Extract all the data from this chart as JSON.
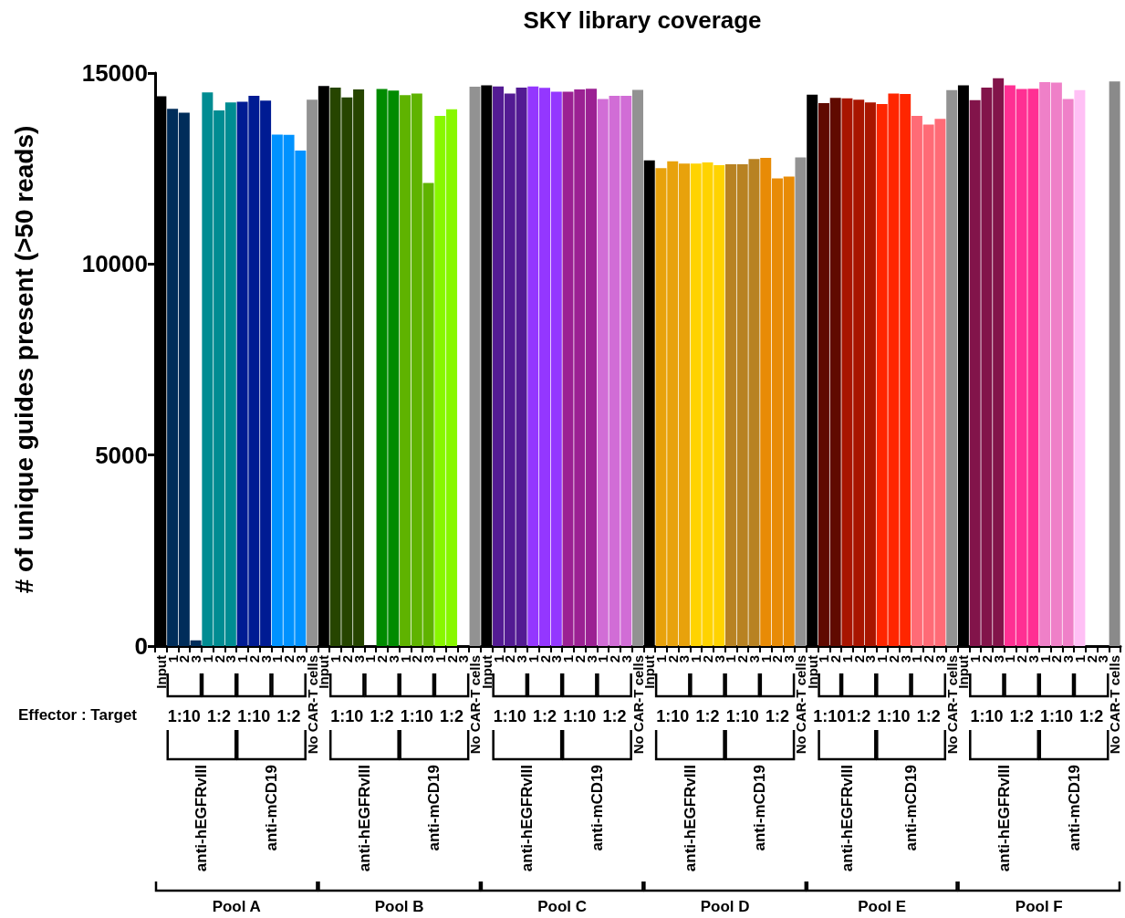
{
  "chart_data": {
    "type": "bar",
    "title": "SKY library coverage",
    "ylabel": "# of unique guides present (>50 reads)",
    "categories": [
      "Input",
      "1",
      "2",
      "3",
      "1",
      "2",
      "3",
      "1",
      "2",
      "3",
      "1",
      "2",
      "3",
      "No CAR-T cells",
      "Input",
      "1",
      "2",
      "3",
      "1",
      "2",
      "3",
      "1",
      "2",
      "3",
      "1",
      "2",
      "3",
      "No CAR-T cells",
      "Input",
      "1",
      "2",
      "3",
      "1",
      "2",
      "3",
      "1",
      "2",
      "3",
      "1",
      "2",
      "3",
      "No CAR-T cells",
      "Input",
      "1",
      "2",
      "3",
      "1",
      "2",
      "3",
      "1",
      "2",
      "3",
      "1",
      "2",
      "3",
      "No CAR-T cells",
      "Input",
      "1",
      "2",
      "1",
      "2",
      "3",
      "1",
      "2",
      "3",
      "1",
      "2",
      "3",
      "No CAR-T cells",
      "Input",
      "1",
      "2",
      "3",
      "1",
      "2",
      "3",
      "1",
      "2",
      "3",
      "1",
      "2",
      "3",
      "No CAR-T cells"
    ],
    "values": [
      14390,
      14060,
      13960,
      150,
      14490,
      14020,
      14230,
      14250,
      14400,
      14280,
      13390,
      13380,
      12970,
      14300,
      14660,
      14620,
      14360,
      14570,
      null,
      14580,
      14540,
      14420,
      14460,
      12120,
      13880,
      14050,
      null,
      14640,
      14680,
      14650,
      14460,
      14620,
      14650,
      14610,
      14510,
      14510,
      14570,
      14590,
      14320,
      14400,
      14400,
      14560,
      12710,
      12510,
      12690,
      12630,
      12630,
      12660,
      12590,
      12610,
      12610,
      12750,
      12780,
      12240,
      12290,
      12790,
      14430,
      14210,
      14350,
      14340,
      14300,
      14230,
      14190,
      14460,
      14450,
      13880,
      13650,
      13800,
      14550,
      14680,
      14290,
      14620,
      14860,
      14680,
      14580,
      14590,
      14760,
      14750,
      14320,
      14550,
      null,
      null,
      14780
    ],
    "colors": [
      "#000000",
      "#002d5a",
      "#002d5a",
      "#002d5a",
      "#008c92",
      "#008c92",
      "#008c92",
      "#001b93",
      "#001b93",
      "#001b93",
      "#0092ff",
      "#0092ff",
      "#0092ff",
      "#929292",
      "#000000",
      "#264500",
      "#264500",
      "#264500",
      null,
      "#008b00",
      "#008b00",
      "#5fb300",
      "#5fb300",
      "#5fb300",
      "#88f700",
      "#88f700",
      null,
      "#929292",
      "#000000",
      "#531b93",
      "#531b93",
      "#531b93",
      "#9437ff",
      "#9437ff",
      "#9437ff",
      "#9b2193",
      "#9b2193",
      "#9b2193",
      "#d16dd6",
      "#d16dd6",
      "#d16dd6",
      "#929292",
      "#000000",
      "#e8a20c",
      "#e8a20c",
      "#e8a20c",
      "#ffd300",
      "#ffd300",
      "#ffd300",
      "#b88222",
      "#b88222",
      "#b88222",
      "#e88b06",
      "#e88b06",
      "#e88b06",
      "#929292",
      "#000000",
      "#600a00",
      "#600a00",
      "#a81500",
      "#a81500",
      "#a81500",
      "#ff2600",
      "#ff2600",
      "#ff2600",
      "#ff6b76",
      "#ff6b76",
      "#ff6b76",
      "#929292",
      "#000000",
      "#82144a",
      "#82144a",
      "#82144a",
      "#ff3093",
      "#ff3093",
      "#ff3093",
      "#ef80c8",
      "#ef80c8",
      "#ef80c8",
      "#ffc0f5",
      null,
      null,
      "#8a8a8a"
    ],
    "ylim": [
      0,
      15000
    ],
    "yticks": [
      0,
      5000,
      10000,
      15000
    ],
    "grid": false,
    "annotations": [
      "Effector : Target",
      "1:10",
      "1:2",
      "1:10",
      "1:2",
      "anti-hEGFRvIII",
      "anti-mCD19",
      "Pool A",
      "1:10",
      "1:2",
      "1:10",
      "1:2",
      "anti-hEGFRvIII",
      "anti-mCD19",
      "Pool B",
      "1:10",
      "1:2",
      "1:10",
      "1:2",
      "anti-hEGFRvIII",
      "anti-mCD19",
      "Pool C",
      "1:10",
      "1:2",
      "1:10",
      "1:2",
      "anti-hEGFRvIII",
      "anti-mCD19",
      "Pool D",
      "1:10",
      "1:2",
      "1:10",
      "1:2",
      "anti-hEGFRvIII",
      "anti-mCD19",
      "Pool E",
      "1:10",
      "1:2",
      "1:10",
      "1:2",
      "anti-hEGFRvIII",
      "anti-mCD19",
      "Pool F"
    ]
  }
}
